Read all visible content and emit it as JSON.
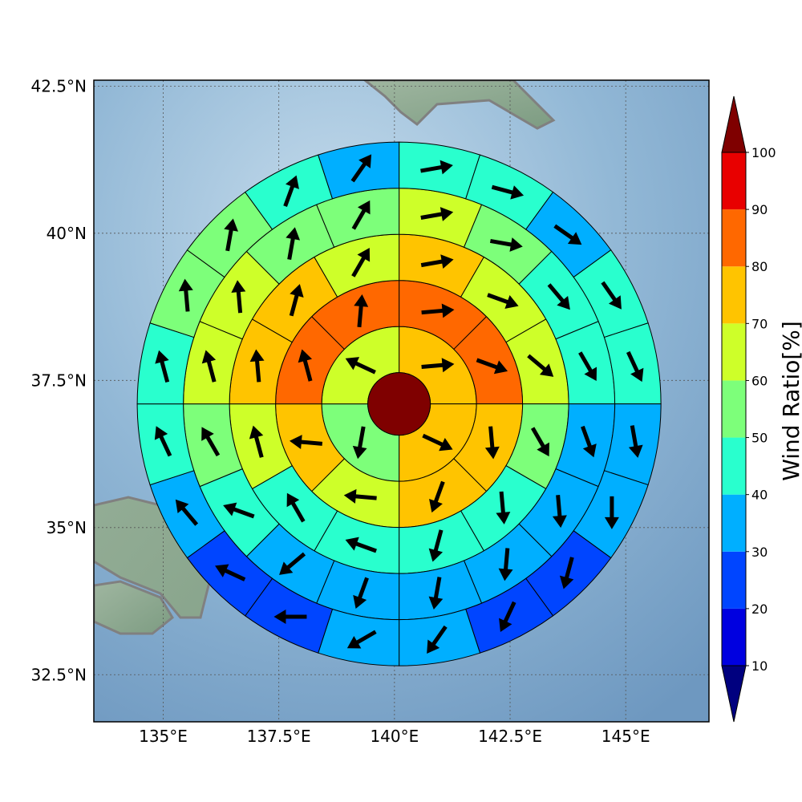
{
  "map": {
    "lat_range": [
      31.7,
      42.6
    ],
    "lon_range": [
      133.5,
      146.8
    ],
    "lat_ticks": [
      {
        "value": 32.5,
        "label": "32.5°N"
      },
      {
        "value": 35,
        "label": "35°N"
      },
      {
        "value": 37.5,
        "label": "37.5°N"
      },
      {
        "value": 40,
        "label": "40°N"
      },
      {
        "value": 42.5,
        "label": "42.5°N"
      }
    ],
    "lon_ticks": [
      {
        "value": 135,
        "label": "135°E"
      },
      {
        "value": 137.5,
        "label": "137.5°E"
      },
      {
        "value": 140,
        "label": "140°E"
      },
      {
        "value": 142.5,
        "label": "142.5°E"
      },
      {
        "value": 145,
        "label": "145°E"
      }
    ],
    "grid": true,
    "center": {
      "lon": 140.1,
      "lat": 37.1
    }
  },
  "colorbar": {
    "label": "Wind Ratio[%]",
    "ticks": [
      "10",
      "20",
      "30",
      "40",
      "50",
      "60",
      "70",
      "80",
      "90",
      "100"
    ],
    "colors": [
      "#00007f",
      "#0000e0",
      "#0045ff",
      "#00afff",
      "#29ffce",
      "#7dff7a",
      "#ceff29",
      "#ffc400",
      "#ff6800",
      "#e80000",
      "#7f0000"
    ],
    "extend": "both"
  },
  "chart_data": {
    "type": "polar-sectors",
    "rings": [
      {
        "ring": 1,
        "sectors": 4,
        "values": [
          75,
          75,
          55,
          65
        ],
        "arrow_dirs": [
          85,
          115,
          190,
          295
        ]
      },
      {
        "ring": 2,
        "sectors": 8,
        "values": [
          85,
          85,
          75,
          75,
          65,
          75,
          85,
          85
        ],
        "arrow_dirs": [
          85,
          110,
          175,
          200,
          275,
          275,
          345,
          5
        ]
      },
      {
        "ring": 3,
        "sectors": 12,
        "values": [
          75,
          65,
          65,
          55,
          45,
          45,
          45,
          45,
          65,
          75,
          75,
          65
        ],
        "arrow_dirs": [
          80,
          110,
          130,
          150,
          175,
          195,
          290,
          330,
          345,
          355,
          15,
          30
        ]
      },
      {
        "ring": 4,
        "sectors": 16,
        "values": [
          65,
          55,
          45,
          45,
          35,
          35,
          35,
          35,
          35,
          35,
          45,
          55,
          65,
          65,
          55,
          55
        ],
        "arrow_dirs": [
          80,
          100,
          140,
          150,
          160,
          175,
          185,
          190,
          200,
          230,
          290,
          330,
          345,
          355,
          10,
          30
        ]
      },
      {
        "ring": 5,
        "sectors": 20,
        "values": [
          45,
          45,
          35,
          45,
          45,
          35,
          35,
          25,
          25,
          35,
          35,
          25,
          25,
          35,
          45,
          45,
          55,
          55,
          45,
          35
        ],
        "arrow_dirs": [
          80,
          105,
          125,
          145,
          155,
          170,
          180,
          195,
          205,
          215,
          240,
          270,
          295,
          320,
          335,
          345,
          355,
          10,
          20,
          35
        ]
      }
    ],
    "center_value": 100
  }
}
